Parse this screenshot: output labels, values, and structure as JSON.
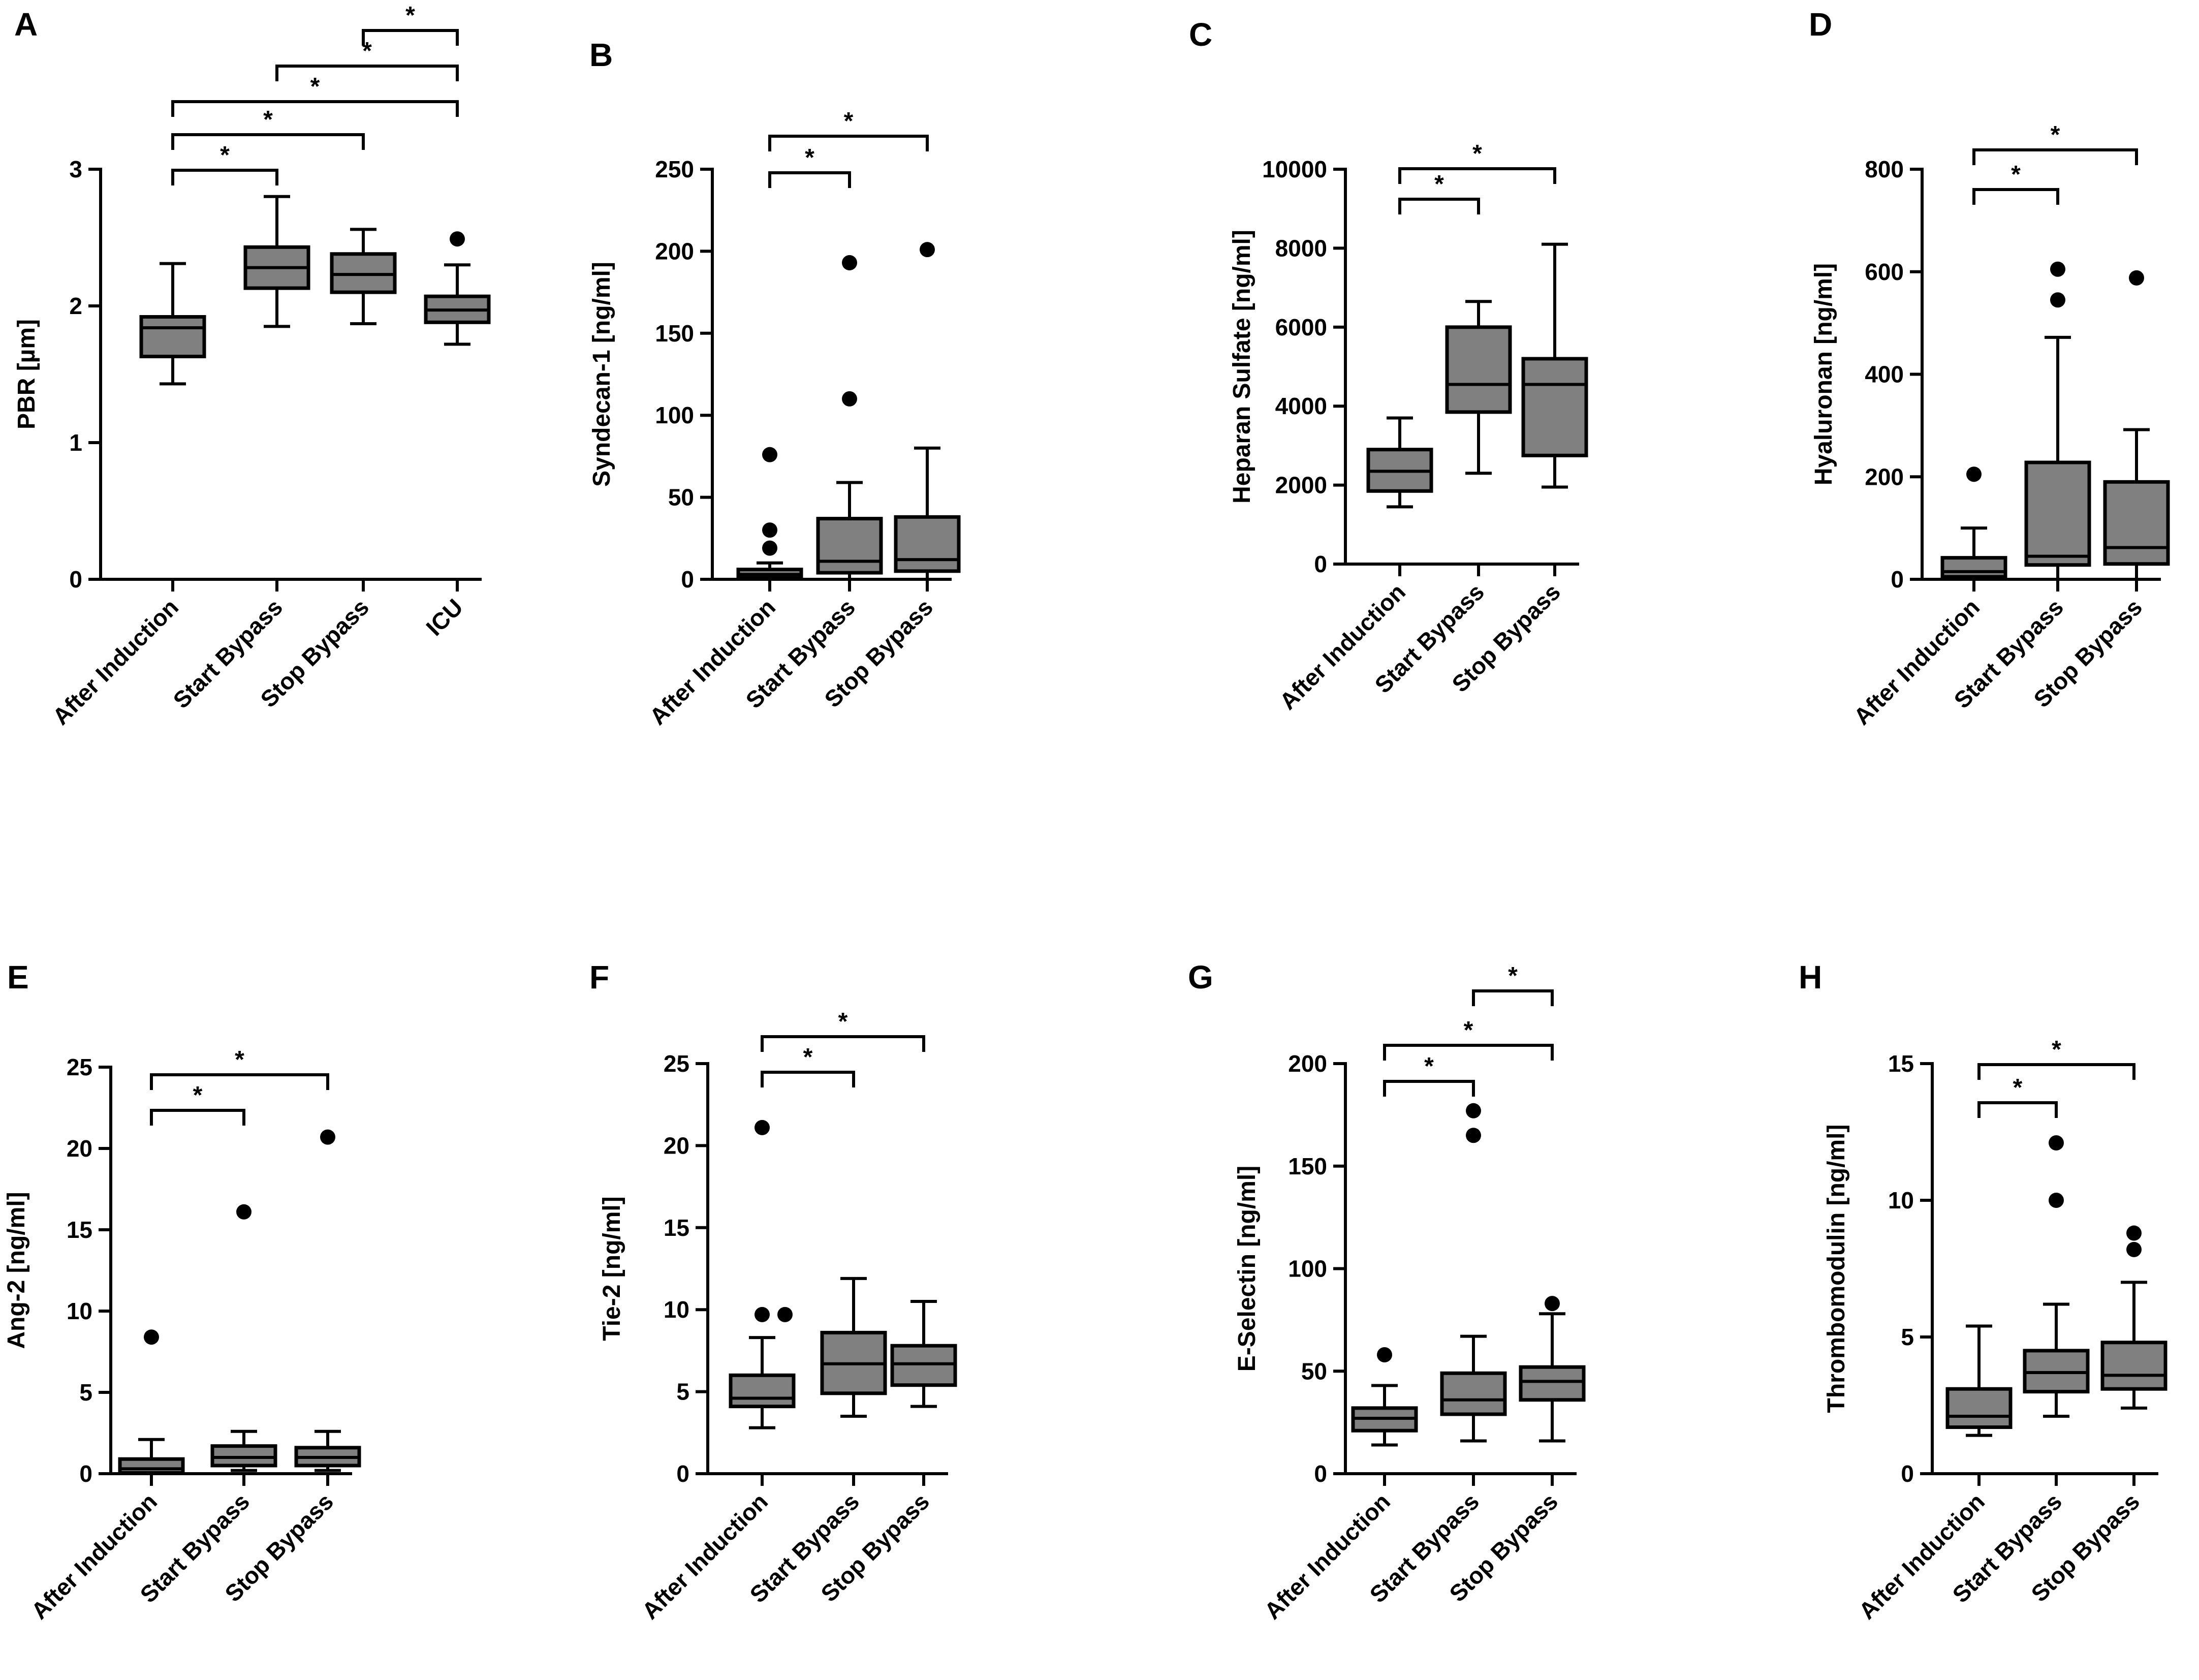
{
  "colors": {
    "box_fill": "#808080",
    "stroke": "#000000",
    "background": "#ffffff"
  },
  "chart_data": [
    {
      "panel": "A",
      "type": "box",
      "ylabel": "PBR [µm]",
      "ylim": [
        0,
        3
      ],
      "yticks": [
        0,
        1,
        2,
        3
      ],
      "categories": [
        "After Induction",
        "Start Bypass",
        "Stop Bypass",
        "ICU"
      ],
      "boxes": [
        {
          "min": 1.43,
          "q1": 1.63,
          "median": 1.84,
          "q3": 1.92,
          "max": 2.31,
          "outliers": []
        },
        {
          "min": 1.85,
          "q1": 2.13,
          "median": 2.28,
          "q3": 2.43,
          "max": 2.8,
          "outliers": []
        },
        {
          "min": 1.87,
          "q1": 2.1,
          "median": 2.23,
          "q3": 2.38,
          "max": 2.56,
          "outliers": []
        },
        {
          "min": 1.72,
          "q1": 1.88,
          "median": 1.97,
          "q3": 2.07,
          "max": 2.3,
          "outliers": [
            2.49
          ]
        }
      ],
      "significance": [
        {
          "from": 0,
          "to": 1,
          "label": "*"
        },
        {
          "from": 0,
          "to": 2,
          "label": "*"
        },
        {
          "from": 0,
          "to": 3,
          "label": "*"
        },
        {
          "from": 1,
          "to": 3,
          "label": "*"
        },
        {
          "from": 2,
          "to": 3,
          "label": "*"
        }
      ]
    },
    {
      "panel": "B",
      "type": "box",
      "ylabel": "Syndecan-1 [ng/ml]",
      "ylim": [
        0,
        250
      ],
      "yticks": [
        0,
        50,
        100,
        150,
        200,
        250
      ],
      "categories": [
        "After Induction",
        "Start Bypass",
        "Stop Bypass"
      ],
      "boxes": [
        {
          "min": 0,
          "q1": 1,
          "median": 3,
          "q3": 6,
          "max": 10,
          "outliers": [
            19,
            30,
            76
          ]
        },
        {
          "min": 0,
          "q1": 4,
          "median": 11,
          "q3": 37,
          "max": 59,
          "outliers": [
            110,
            193
          ]
        },
        {
          "min": 0,
          "q1": 5,
          "median": 12,
          "q3": 38,
          "max": 80,
          "outliers": [
            201
          ]
        }
      ],
      "significance": [
        {
          "from": 0,
          "to": 1,
          "label": "*"
        },
        {
          "from": 0,
          "to": 2,
          "label": "*"
        }
      ]
    },
    {
      "panel": "C",
      "type": "box",
      "ylabel": "Heparan Sulfate [ng/ml]",
      "ylim": [
        0,
        10000
      ],
      "yticks": [
        0,
        2000,
        4000,
        6000,
        8000,
        10000
      ],
      "categories": [
        "After Induction",
        "Start Bypass",
        "Stop Bypass"
      ],
      "boxes": [
        {
          "min": 1450,
          "q1": 1850,
          "median": 2350,
          "q3": 2900,
          "max": 3700,
          "outliers": []
        },
        {
          "min": 2300,
          "q1": 3850,
          "median": 4550,
          "q3": 6000,
          "max": 6650,
          "outliers": []
        },
        {
          "min": 1950,
          "q1": 2750,
          "median": 4550,
          "q3": 5200,
          "max": 8100,
          "outliers": []
        }
      ],
      "significance": [
        {
          "from": 0,
          "to": 1,
          "label": "*"
        },
        {
          "from": 0,
          "to": 2,
          "label": "*"
        }
      ]
    },
    {
      "panel": "D",
      "type": "box",
      "ylabel": "Hyaluronan [ng/ml]",
      "ylim": [
        0,
        800
      ],
      "yticks": [
        0,
        200,
        400,
        600,
        800
      ],
      "categories": [
        "After Induction",
        "Start Bypass",
        "Stop Bypass"
      ],
      "boxes": [
        {
          "min": 0,
          "q1": 5,
          "median": 15,
          "q3": 42,
          "max": 100,
          "outliers": [
            205
          ]
        },
        {
          "min": 0,
          "q1": 28,
          "median": 45,
          "q3": 228,
          "max": 472,
          "outliers": [
            545,
            605
          ]
        },
        {
          "min": 0,
          "q1": 30,
          "median": 62,
          "q3": 190,
          "max": 292,
          "outliers": [
            588
          ]
        }
      ],
      "significance": [
        {
          "from": 0,
          "to": 1,
          "label": "*"
        },
        {
          "from": 0,
          "to": 2,
          "label": "*"
        }
      ]
    },
    {
      "panel": "E",
      "type": "box",
      "ylabel": "Ang-2 [ng/ml]",
      "ylim": [
        0,
        25
      ],
      "yticks": [
        0,
        5,
        10,
        15,
        20,
        25
      ],
      "categories": [
        "After Induction",
        "Start Bypass",
        "Stop Bypass"
      ],
      "boxes": [
        {
          "min": 0,
          "q1": 0.05,
          "median": 0.3,
          "q3": 0.9,
          "max": 2.1,
          "outliers": [
            8.4
          ]
        },
        {
          "min": 0.2,
          "q1": 0.5,
          "median": 1.0,
          "q3": 1.7,
          "max": 2.6,
          "outliers": [
            16.1
          ]
        },
        {
          "min": 0.2,
          "q1": 0.5,
          "median": 1.0,
          "q3": 1.6,
          "max": 2.6,
          "outliers": [
            20.7
          ]
        }
      ],
      "significance": [
        {
          "from": 0,
          "to": 1,
          "label": "*"
        },
        {
          "from": 0,
          "to": 2,
          "label": "*"
        }
      ]
    },
    {
      "panel": "F",
      "type": "box",
      "ylabel": "Tie-2 [ng/ml]",
      "ylim": [
        0,
        25
      ],
      "yticks": [
        0,
        5,
        10,
        15,
        20,
        25
      ],
      "categories": [
        "After Induction",
        "Start Bypass",
        "Stop Bypass"
      ],
      "boxes": [
        {
          "min": 2.8,
          "q1": 4.1,
          "median": 4.6,
          "q3": 6.0,
          "max": 8.3,
          "outliers": [
            9.7,
            9.7,
            21.1
          ]
        },
        {
          "min": 3.5,
          "q1": 4.9,
          "median": 6.7,
          "q3": 8.6,
          "max": 11.9,
          "outliers": []
        },
        {
          "min": 4.1,
          "q1": 5.4,
          "median": 6.7,
          "q3": 7.8,
          "max": 10.5,
          "outliers": []
        }
      ],
      "significance": [
        {
          "from": 0,
          "to": 1,
          "label": "*"
        },
        {
          "from": 0,
          "to": 2,
          "label": "*"
        }
      ]
    },
    {
      "panel": "G",
      "type": "box",
      "ylabel": "E-Selectin [ng/ml]",
      "ylim": [
        0,
        200
      ],
      "yticks": [
        0,
        50,
        100,
        150,
        200
      ],
      "categories": [
        "After Induction",
        "Start Bypass",
        "Stop Bypass"
      ],
      "boxes": [
        {
          "min": 14,
          "q1": 21,
          "median": 27,
          "q3": 32,
          "max": 43,
          "outliers": [
            58
          ]
        },
        {
          "min": 16,
          "q1": 29,
          "median": 36,
          "q3": 49,
          "max": 67,
          "outliers": [
            165,
            177
          ]
        },
        {
          "min": 16,
          "q1": 36,
          "median": 45,
          "q3": 52,
          "max": 78,
          "outliers": [
            83
          ]
        }
      ],
      "significance": [
        {
          "from": 0,
          "to": 1,
          "label": "*"
        },
        {
          "from": 0,
          "to": 2,
          "label": "*"
        },
        {
          "from": 1,
          "to": 2,
          "label": "*"
        }
      ]
    },
    {
      "panel": "H",
      "type": "box",
      "ylabel": "Thrombomodulin [ng/ml]",
      "ylim": [
        0,
        15
      ],
      "yticks": [
        0,
        5,
        10,
        15
      ],
      "categories": [
        "After Induction",
        "Start Bypass",
        "Stop Bypass"
      ],
      "boxes": [
        {
          "min": 1.4,
          "q1": 1.7,
          "median": 2.1,
          "q3": 3.1,
          "max": 5.4,
          "outliers": []
        },
        {
          "min": 2.1,
          "q1": 3.0,
          "median": 3.7,
          "q3": 4.5,
          "max": 6.2,
          "outliers": [
            10.0,
            12.1
          ]
        },
        {
          "min": 2.4,
          "q1": 3.1,
          "median": 3.6,
          "q3": 4.8,
          "max": 7.0,
          "outliers": [
            8.2,
            8.8
          ]
        }
      ],
      "significance": [
        {
          "from": 0,
          "to": 1,
          "label": "*"
        },
        {
          "from": 0,
          "to": 2,
          "label": "*"
        }
      ]
    }
  ]
}
